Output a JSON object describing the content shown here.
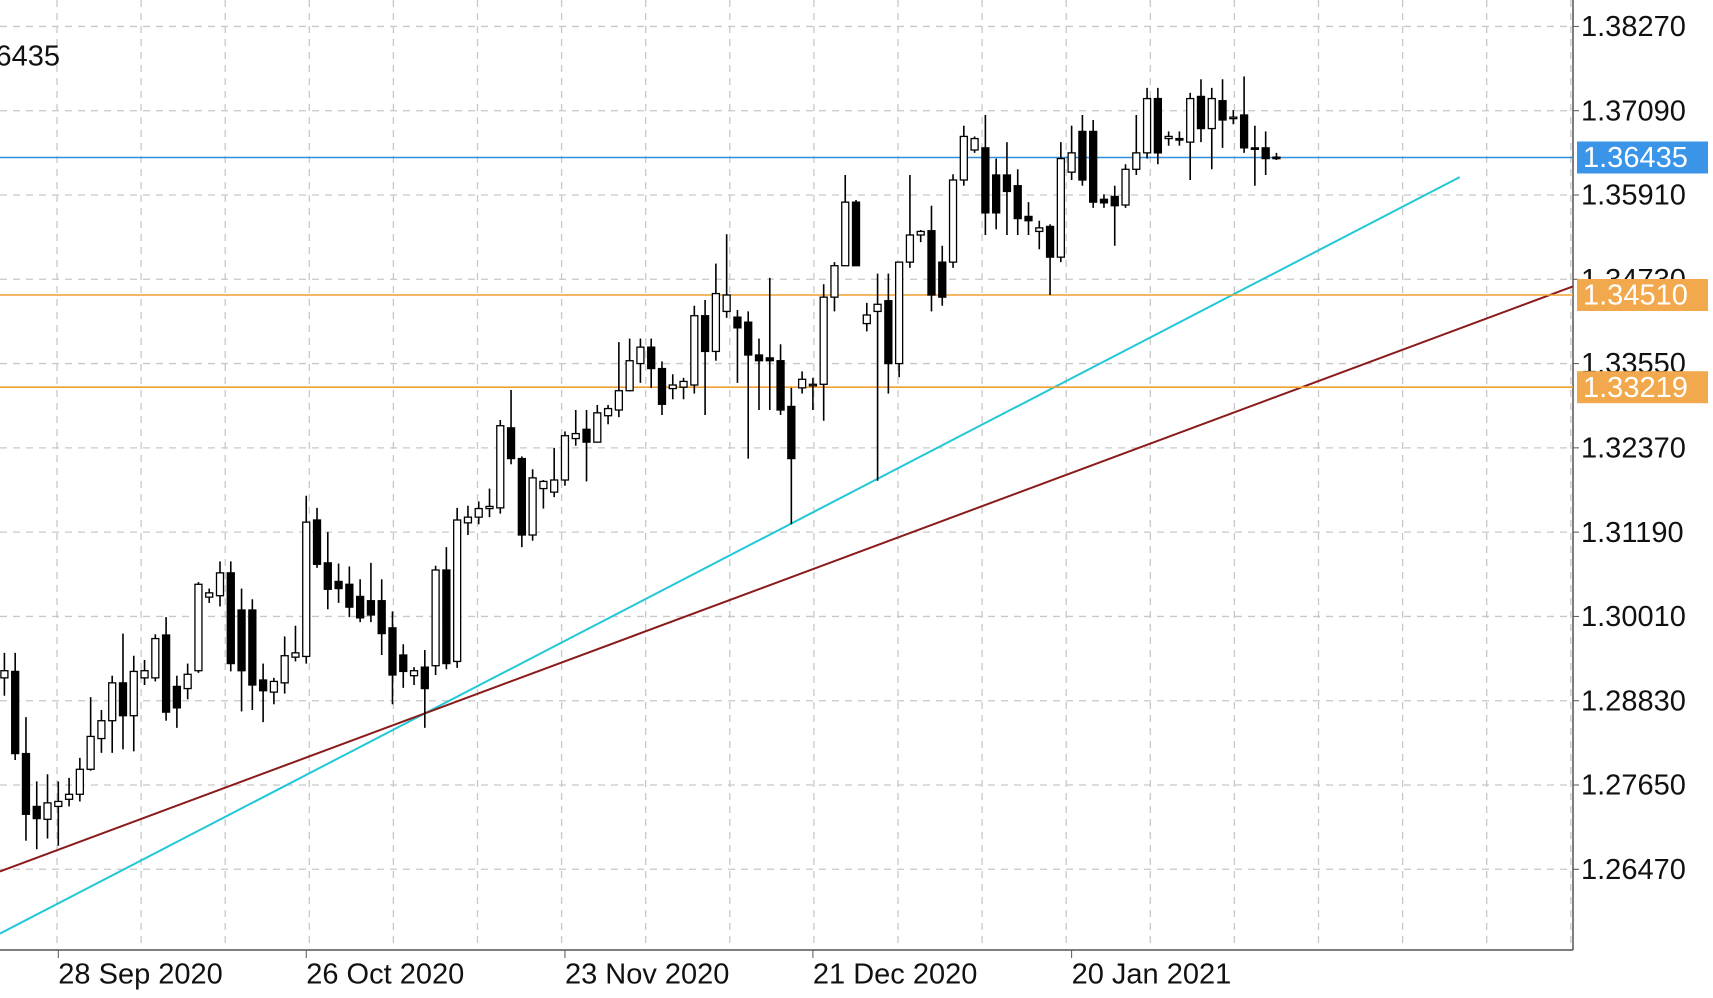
{
  "chart_data": {
    "type": "candlestick",
    "symbol_price": "1.36435",
    "up_color": "#ffffff",
    "down_color": "#000000",
    "ylim": [
      1.2534,
      1.3864
    ],
    "yticks": [
      {
        "value": 1.3827,
        "label": "1.38270"
      },
      {
        "value": 1.3709,
        "label": "1.37090"
      },
      {
        "value": 1.3591,
        "label": "1.35910"
      },
      {
        "value": 1.3473,
        "label": "1.34730"
      },
      {
        "value": 1.3355,
        "label": "1.33550"
      },
      {
        "value": 1.3237,
        "label": "1.32370"
      },
      {
        "value": 1.3119,
        "label": "1.31190"
      },
      {
        "value": 1.3001,
        "label": "1.30010"
      },
      {
        "value": 1.2883,
        "label": "1.28830"
      },
      {
        "value": 1.2765,
        "label": "1.27650"
      },
      {
        "value": 1.2647,
        "label": "1.26470"
      }
    ],
    "grid": true,
    "categories": [
      null,
      null,
      null,
      null,
      null,
      "28 Sep 2020",
      null,
      null,
      null,
      null,
      null,
      null,
      null,
      null,
      null,
      null,
      null,
      null,
      null,
      null,
      null,
      null,
      null,
      null,
      null,
      null,
      null,
      null,
      "26 Oct 2020",
      null,
      null,
      null,
      null,
      null,
      null,
      null,
      null,
      null,
      null,
      null,
      null,
      null,
      null,
      null,
      null,
      null,
      null,
      null,
      null,
      null,
      null,
      null,
      "23 Nov 2020",
      null,
      null,
      null,
      null,
      null,
      null,
      null,
      null,
      null,
      null,
      null,
      null,
      null,
      null,
      null,
      null,
      null,
      null,
      null,
      null,
      null,
      null,
      "21 Dec 2020",
      null,
      null,
      null,
      null,
      null,
      null,
      null,
      null,
      null,
      null,
      null,
      null,
      null,
      null,
      null,
      null,
      null,
      null,
      null,
      null,
      null,
      null,
      null,
      "20 Jan 2021",
      null,
      null,
      null,
      null,
      null,
      null,
      null,
      null,
      null,
      null,
      null,
      null,
      null,
      null,
      null,
      null,
      null,
      null,
      null
    ],
    "open": [
      1.2915,
      1.2924,
      1.2809,
      1.2735,
      1.2717,
      1.2735,
      1.2745,
      1.2752,
      1.2787,
      1.283,
      1.2855,
      1.2908,
      1.2862,
      1.2915,
      1.2915,
      1.2975,
      1.2903,
      1.29,
      1.2925,
      1.3028,
      1.303,
      1.3062,
      1.301,
      1.301,
      1.2912,
      1.2895,
      1.2908,
      1.2944,
      1.2945,
      1.3136,
      1.3076,
      1.305,
      1.3046,
      1.3029,
      1.3023,
      1.3023,
      1.2985,
      1.2947,
      1.2918,
      1.293,
      1.2932,
      1.3066,
      1.2938,
      1.3132,
      1.314,
      1.3152,
      1.3153,
      1.3265,
      1.3222,
      1.3115,
      1.318,
      1.3175,
      1.3192,
      1.325,
      1.3263,
      1.3245,
      1.3282,
      1.329,
      1.3317,
      1.3355,
      1.3378,
      1.3348,
      1.332,
      1.3322,
      1.3325,
      1.3422,
      1.3372,
      1.3428,
      1.342,
      1.3413,
      1.3367,
      1.3363,
      1.3359,
      1.3295,
      1.3321,
      1.3325,
      1.3326,
      1.3448,
      1.3492,
      1.3581,
      1.3411,
      1.3428,
      1.3443,
      1.3355,
      1.3497,
      1.3535,
      1.3541,
      1.3497,
      1.3497,
      1.3612,
      1.3654,
      1.3657,
      1.3619,
      1.3619,
      1.3604,
      1.3561,
      1.354,
      1.3547,
      1.3504,
      1.3623,
      1.368,
      1.368,
      1.3585,
      1.3589,
      1.3577,
      1.3627,
      1.365,
      1.3726,
      1.367,
      1.367,
      1.3665,
      1.3729,
      1.3684,
      1.3723,
      1.37,
      1.3703,
      1.3657,
      1.3657,
      1.3644
    ],
    "high": [
      1.295,
      1.295,
      1.286,
      1.277,
      1.278,
      1.277,
      1.2775,
      1.2803,
      1.2888,
      1.287,
      1.2918,
      1.2977,
      1.2946,
      1.294,
      1.2976,
      1.3,
      1.2918,
      1.2935,
      1.3049,
      1.304,
      1.3078,
      1.3078,
      1.304,
      1.3025,
      1.2935,
      1.2915,
      1.2973,
      1.2988,
      1.317,
      1.3153,
      1.3119,
      1.3075,
      1.3071,
      1.3053,
      1.3076,
      1.3053,
      1.3008,
      1.2962,
      1.293,
      1.2954,
      1.3072,
      1.3098,
      1.3153,
      1.3156,
      1.3162,
      1.318,
      1.3276,
      1.3318,
      1.3225,
      1.3207,
      1.3192,
      1.3237,
      1.326,
      1.329,
      1.329,
      1.3297,
      1.3297,
      1.3385,
      1.339,
      1.339,
      1.339,
      1.3358,
      1.334,
      1.3335,
      1.3436,
      1.3444,
      1.3495,
      1.3536,
      1.343,
      1.3428,
      1.339,
      1.3475,
      1.3382,
      1.3321,
      1.3344,
      1.3335,
      1.3466,
      1.3497,
      1.3619,
      1.3584,
      1.344,
      1.3481,
      1.3481,
      1.3497,
      1.3619,
      1.3542,
      1.3576,
      1.352,
      1.362,
      1.3688,
      1.3673,
      1.3703,
      1.3642,
      1.3665,
      1.3627,
      1.3581,
      1.3555,
      1.355,
      1.3665,
      1.3688,
      1.3703,
      1.3696,
      1.3592,
      1.3604,
      1.3634,
      1.3703,
      1.3741,
      1.3741,
      1.368,
      1.368,
      1.3734,
      1.3753,
      1.3741,
      1.3753,
      1.371,
      1.3757,
      1.3688,
      1.368,
      1.365
    ],
    "low": [
      1.289,
      1.28,
      1.2687,
      1.2675,
      1.269,
      1.268,
      1.2735,
      1.2742,
      1.2785,
      1.281,
      1.281,
      1.2815,
      1.2812,
      1.2905,
      1.291,
      1.2855,
      1.2845,
      1.2885,
      1.2922,
      1.302,
      1.3015,
      1.2924,
      1.2868,
      1.287,
      1.2853,
      1.2878,
      1.2893,
      1.2938,
      1.2935,
      1.3069,
      1.3011,
      1.302,
      1.3,
      1.2993,
      1.2993,
      1.2947,
      1.2878,
      1.2901,
      1.2905,
      1.2845,
      1.2919,
      1.2927,
      1.2929,
      1.3115,
      1.313,
      1.314,
      1.3145,
      1.3214,
      1.3098,
      1.3107,
      1.3152,
      1.3168,
      1.3184,
      1.324,
      1.319,
      1.3245,
      1.327,
      1.328,
      1.3316,
      1.3328,
      1.3321,
      1.3283,
      1.3305,
      1.3305,
      1.3313,
      1.3283,
      1.3359,
      1.3419,
      1.3328,
      1.3222,
      1.329,
      1.329,
      1.3283,
      1.313,
      1.3313,
      1.329,
      1.3275,
      1.3428,
      1.3492,
      1.3492,
      1.34,
      1.3191,
      1.3313,
      1.3336,
      1.3489,
      1.3525,
      1.3428,
      1.3436,
      1.3489,
      1.3604,
      1.365,
      1.3535,
      1.3543,
      1.3535,
      1.3535,
      1.3535,
      1.3515,
      1.3451,
      1.3497,
      1.3612,
      1.3604,
      1.3573,
      1.3573,
      1.352,
      1.3573,
      1.3619,
      1.3642,
      1.3634,
      1.366,
      1.366,
      1.3612,
      1.3665,
      1.3627,
      1.3657,
      1.369,
      1.365,
      1.3604,
      1.3619,
      1.364
    ],
    "close": [
      1.2925,
      1.2809,
      1.2724,
      1.2718,
      1.274,
      1.2742,
      1.2752,
      1.2787,
      1.2833,
      1.2855,
      1.2908,
      1.2862,
      1.2924,
      1.2925,
      1.297,
      1.2867,
      1.2873,
      1.292,
      1.3046,
      1.3034,
      1.3062,
      1.2935,
      1.2925,
      1.2905,
      1.2897,
      1.291,
      1.2946,
      1.295,
      1.3133,
      1.3074,
      1.3039,
      1.304,
      1.3014,
      1.2999,
      1.3003,
      1.2977,
      1.2919,
      1.2924,
      1.2925,
      1.29,
      1.3066,
      1.2935,
      1.3136,
      1.314,
      1.3152,
      1.3155,
      1.3268,
      1.3222,
      1.3115,
      1.3195,
      1.319,
      1.3192,
      1.3254,
      1.3257,
      1.3245,
      1.3286,
      1.3292,
      1.3317,
      1.3359,
      1.3378,
      1.3348,
      1.3298,
      1.3325,
      1.333,
      1.3422,
      1.3372,
      1.3453,
      1.3451,
      1.3405,
      1.3367,
      1.3359,
      1.3359,
      1.329,
      1.3222,
      1.3333,
      1.3326,
      1.3448,
      1.3492,
      1.3581,
      1.3492,
      1.3423,
      1.3438,
      1.3355,
      1.3497,
      1.3535,
      1.354,
      1.3451,
      1.3448,
      1.3612,
      1.3673,
      1.367,
      1.3566,
      1.3566,
      1.3596,
      1.3558,
      1.3555,
      1.3545,
      1.3504,
      1.3642,
      1.365,
      1.3612,
      1.3581,
      1.358,
      1.3576,
      1.3627,
      1.365,
      1.3726,
      1.365,
      1.3673,
      1.3668,
      1.3726,
      1.3684,
      1.3726,
      1.3696,
      1.37,
      1.3657,
      1.3655,
      1.3642,
      1.3643
    ],
    "hlines": [
      {
        "value": 1.36435,
        "label": "1.36435",
        "color": "#2f8fe0",
        "badge_color": "#3a94e8"
      },
      {
        "value": 1.3451,
        "label": "1.34510",
        "color": "#f0a030",
        "badge_color": "#f2a84c"
      },
      {
        "value": 1.33219,
        "label": "1.33219",
        "color": "#f0a030",
        "badge_color": "#f2a84c"
      }
    ],
    "trendlines": [
      {
        "color": "#22c8d8",
        "x": [
          -0.41,
          135
        ],
        "y": [
          1.2557,
          1.3616
        ]
      },
      {
        "color": "#8b1a1a",
        "x": [
          -0.41,
          145.5
        ],
        "y": [
          1.2644,
          1.3463
        ]
      }
    ]
  }
}
